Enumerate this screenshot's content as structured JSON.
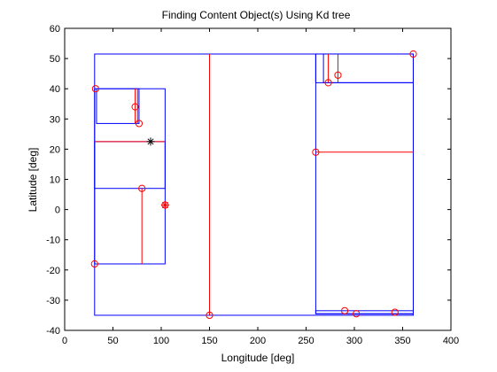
{
  "chart_data": {
    "type": "scatter",
    "title": "Finding Content Object(s) Using Kd tree",
    "xlabel": "Longitude [deg]",
    "ylabel": "Latitude [deg]",
    "xlim": [
      0,
      400
    ],
    "ylim": [
      -40,
      60
    ],
    "xticks": [
      0,
      50,
      100,
      150,
      200,
      250,
      300,
      350,
      400
    ],
    "yticks": [
      -40,
      -30,
      -20,
      -10,
      0,
      10,
      20,
      30,
      40,
      50,
      60
    ],
    "grid": false,
    "legend": "none",
    "colors": {
      "points": "#ff0000",
      "split_lines": "#ff0000",
      "boxes": "#0000ff",
      "query": "#000000",
      "found": "#ff0000"
    },
    "points": [
      {
        "x": 32,
        "y": 40
      },
      {
        "x": 73,
        "y": 34
      },
      {
        "x": 77,
        "y": 28.5
      },
      {
        "x": 80,
        "y": 7
      },
      {
        "x": 31,
        "y": -18
      },
      {
        "x": 150,
        "y": -35
      },
      {
        "x": 260,
        "y": 19
      },
      {
        "x": 273,
        "y": 42
      },
      {
        "x": 283,
        "y": 44.5
      },
      {
        "x": 361,
        "y": 51.5
      },
      {
        "x": 290,
        "y": -33.5
      },
      {
        "x": 302,
        "y": -34.5
      },
      {
        "x": 342,
        "y": -34
      }
    ],
    "split_lines": [
      {
        "x": [
          150,
          150
        ],
        "y": [
          -35,
          51.5
        ]
      },
      {
        "x": [
          31,
          104
        ],
        "y": [
          22.5,
          22.5
        ]
      },
      {
        "x": [
          75.5,
          75.5
        ],
        "y": [
          28.5,
          40
        ]
      },
      {
        "x": [
          73,
          73
        ],
        "y": [
          28.5,
          40
        ]
      },
      {
        "x": [
          80,
          80
        ],
        "y": [
          -18,
          7
        ]
      },
      {
        "x": [
          260,
          361
        ],
        "y": [
          19,
          19
        ]
      },
      {
        "x": [
          283,
          283
        ],
        "y": [
          42,
          51.5
        ]
      },
      {
        "x": [
          273,
          273
        ],
        "y": [
          42,
          51.5
        ]
      }
    ],
    "boxes": [
      {
        "x": [
          31,
          361
        ],
        "y": [
          -35,
          51.5
        ]
      },
      {
        "x": [
          31,
          104
        ],
        "y": [
          -18,
          40
        ]
      },
      {
        "x": [
          31,
          104
        ],
        "y": [
          7,
          22.5
        ]
      },
      {
        "x": [
          33,
          77
        ],
        "y": [
          28.5,
          40
        ]
      },
      {
        "x": [
          260,
          361
        ],
        "y": [
          -34.5,
          51.5
        ]
      },
      {
        "x": [
          260,
          361
        ],
        "y": [
          42,
          51.5
        ]
      },
      {
        "x": [
          268,
          361
        ],
        "y": [
          42,
          51.5
        ]
      },
      {
        "x": [
          260,
          361
        ],
        "y": [
          -34.5,
          -33.5
        ]
      }
    ],
    "query_point": {
      "x": 89,
      "y": 22.5
    },
    "found_point": {
      "x": 104,
      "y": 1.5
    }
  }
}
